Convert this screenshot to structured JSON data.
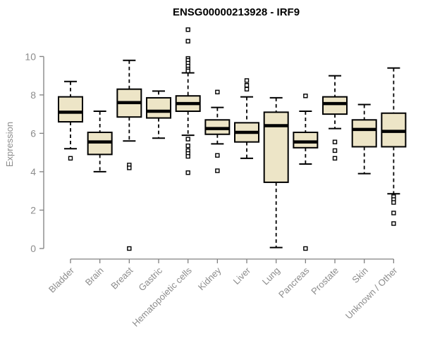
{
  "chart_data": {
    "type": "boxplot",
    "title": "ENSG00000213928 - IRF9",
    "ylabel": "Expression",
    "xlabel": "",
    "ylim": [
      0,
      10
    ],
    "yticks": [
      0,
      2,
      4,
      6,
      8,
      10
    ],
    "grid": false,
    "legend": "none",
    "categories": [
      "Bladder",
      "Brain",
      "Breast",
      "Gastric",
      "Hematopoietic cells",
      "Kidney",
      "Liver",
      "Lung",
      "Pancreas",
      "Prostate",
      "Skin",
      "Unknown / Other"
    ],
    "boxes": [
      {
        "category": "Bladder",
        "low": 5.2,
        "q1": 6.6,
        "median": 7.1,
        "q3": 7.9,
        "high": 8.7,
        "outliers": [
          4.7
        ]
      },
      {
        "category": "Brain",
        "low": 4.0,
        "q1": 4.9,
        "median": 5.55,
        "q3": 6.05,
        "high": 7.15,
        "outliers": []
      },
      {
        "category": "Breast",
        "low": 5.6,
        "q1": 6.85,
        "median": 7.6,
        "q3": 8.3,
        "high": 9.8,
        "outliers": [
          4.35,
          4.2,
          0
        ]
      },
      {
        "category": "Gastric",
        "low": 5.75,
        "q1": 6.8,
        "median": 7.15,
        "q3": 7.85,
        "high": 8.2,
        "outliers": []
      },
      {
        "category": "Hematopoietic cells",
        "low": 5.9,
        "q1": 7.15,
        "median": 7.55,
        "q3": 7.95,
        "high": 9.15,
        "outliers": [
          11.4,
          10.8,
          9.9,
          9.8,
          9.65,
          9.5,
          9.35,
          9.25,
          5.7,
          5.35,
          5.1,
          4.95,
          4.8,
          3.95
        ]
      },
      {
        "category": "Kidney",
        "low": 5.45,
        "q1": 5.95,
        "median": 6.25,
        "q3": 6.7,
        "high": 7.35,
        "outliers": [
          8.15,
          4.85,
          4.05
        ]
      },
      {
        "category": "Liver",
        "low": 4.7,
        "q1": 5.55,
        "median": 6.05,
        "q3": 6.55,
        "high": 7.9,
        "outliers": [
          8.75,
          8.5,
          8.3
        ]
      },
      {
        "category": "Lung",
        "low": 0.05,
        "q1": 3.45,
        "median": 6.4,
        "q3": 7.1,
        "high": 7.85,
        "outliers": []
      },
      {
        "category": "Pancreas",
        "low": 4.4,
        "q1": 5.25,
        "median": 5.55,
        "q3": 6.05,
        "high": 7.15,
        "outliers": [
          7.95,
          0
        ]
      },
      {
        "category": "Prostate",
        "low": 6.25,
        "q1": 7.0,
        "median": 7.55,
        "q3": 7.9,
        "high": 9.0,
        "outliers": [
          5.55,
          5.1,
          4.7
        ]
      },
      {
        "category": "Skin",
        "low": 3.9,
        "q1": 5.3,
        "median": 6.2,
        "q3": 6.7,
        "high": 7.5,
        "outliers": []
      },
      {
        "category": "Unknown / Other",
        "low": 2.85,
        "q1": 5.3,
        "median": 6.1,
        "q3": 7.05,
        "high": 9.4,
        "outliers": [
          2.7,
          2.55,
          2.4,
          1.85,
          1.3
        ]
      }
    ],
    "colors": {
      "box_fill": "#EDE5C7",
      "box_border": "#000000",
      "median": "#000000",
      "whisker": "#000000",
      "outlier_fill": "#ffffff",
      "axis": "#808080",
      "tick_label": "#8c8c8c",
      "title": "#000000",
      "background": "#ffffff"
    }
  }
}
